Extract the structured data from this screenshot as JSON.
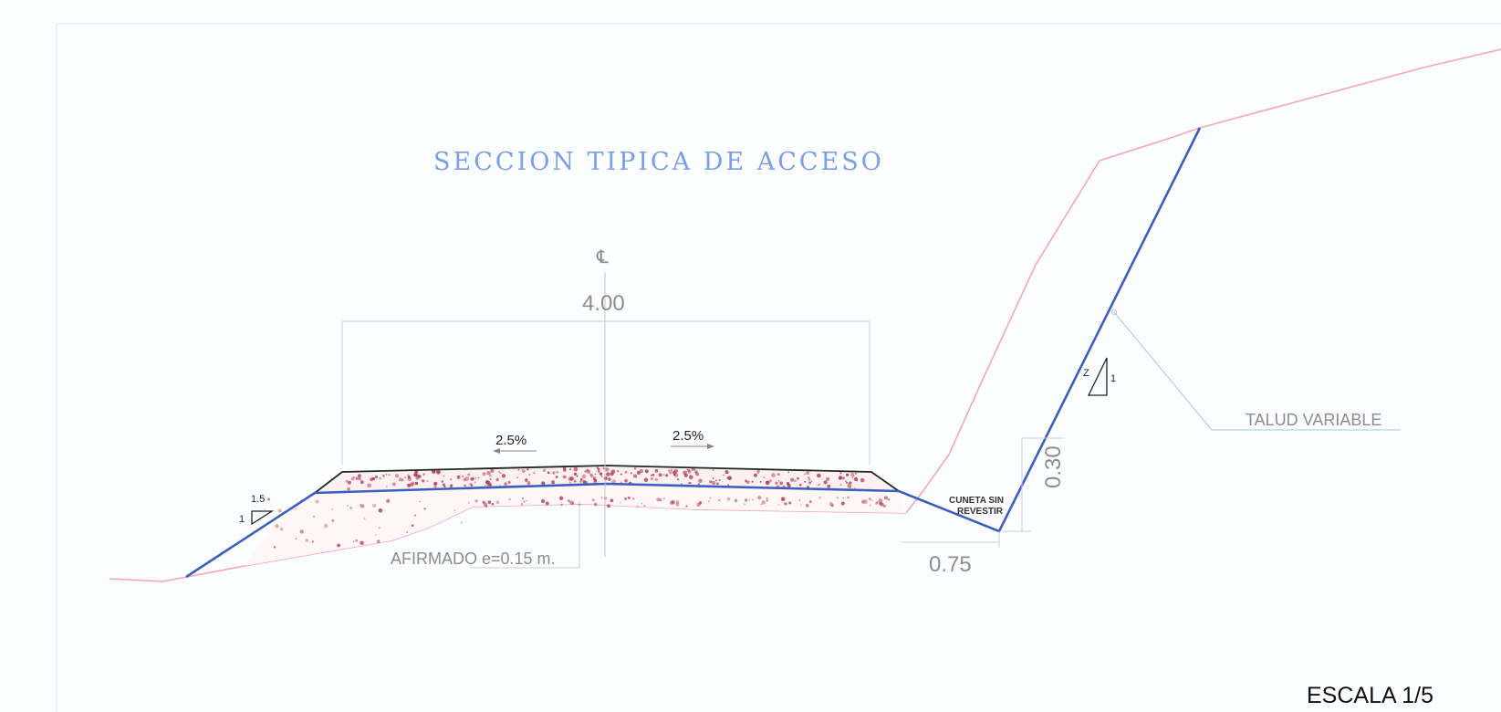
{
  "drawing": {
    "title": "SECCION TIPICA DE ACCESO",
    "centerline_symbol": "℄",
    "width_dimension": "4.00",
    "slope_left": "2.5%",
    "slope_right": "2.5%",
    "fill_slope_h": "1.5",
    "fill_slope_v": "1",
    "pavement_label": "AFIRMADO e=0.15 m.",
    "ditch_label_line1": "CUNETA SIN",
    "ditch_label_line2": "REVESTIR",
    "ditch_width": "0.75",
    "ditch_depth": "0.30",
    "cut_slope_h": "Z",
    "cut_slope_v": "1",
    "cut_slope_label": "TALUD VARIABLE",
    "scale": "ESCALA 1/5"
  },
  "colors": {
    "design_line": "#3b5fc0",
    "terrain_line": "#f4a6b8",
    "pavement_top": "#1f2a1f",
    "aggregate": "#b0405e",
    "dimension": "#bdbdbd",
    "leader": "#a9c7ea",
    "title": "#7a9ee8"
  }
}
